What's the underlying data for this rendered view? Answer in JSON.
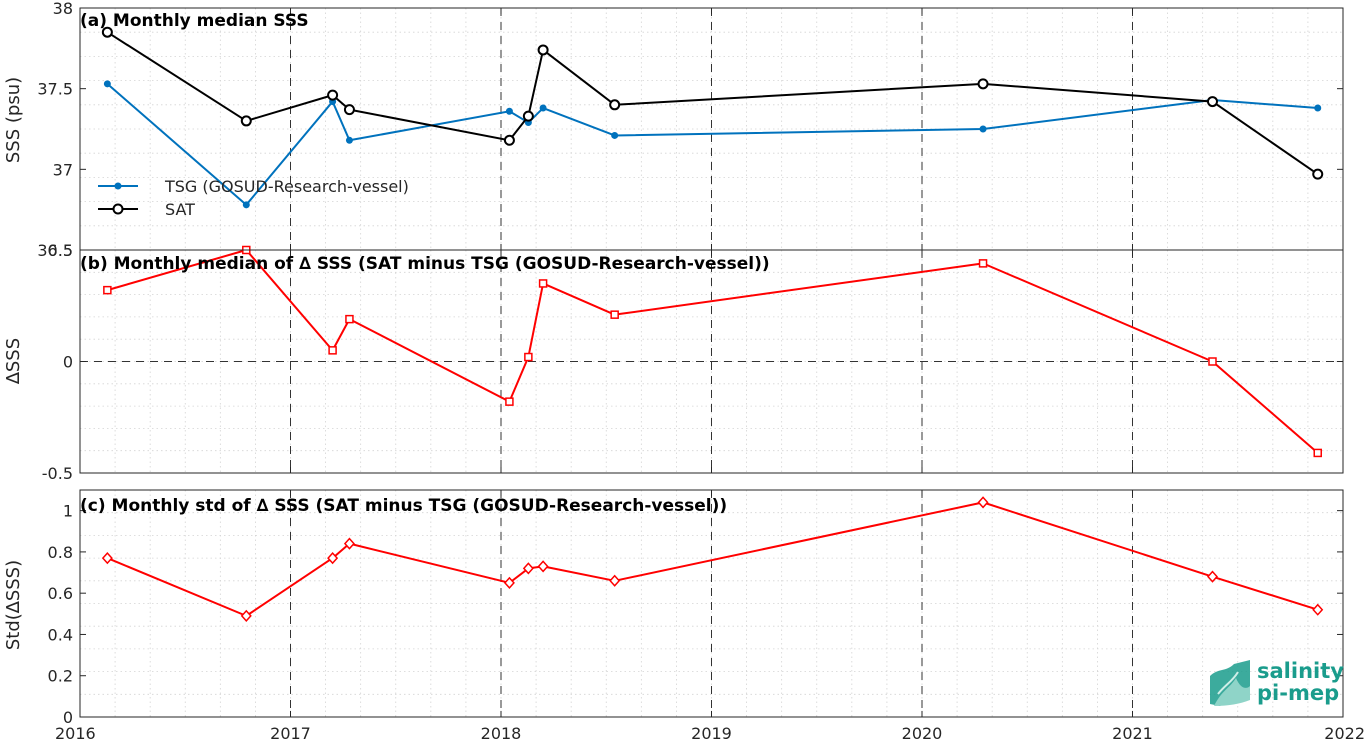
{
  "chart_data": [
    {
      "id": "a",
      "type": "line",
      "title": "(a) Monthly median SSS",
      "ylabel": "SSS (psu)",
      "xlim": [
        2016,
        2022
      ],
      "ylim": [
        36.5,
        38
      ],
      "yticks": [
        "36.5",
        "37",
        "37.5",
        "38"
      ],
      "ytick_values": [
        36.5,
        37,
        37.5,
        38
      ],
      "x": [
        2016.13,
        2016.79,
        2017.2,
        2017.28,
        2018.04,
        2018.13,
        2018.2,
        2018.54,
        2020.29,
        2021.38,
        2021.88
      ],
      "series": [
        {
          "name": "TSG (GOSUD-Research-vessel)",
          "color": "#0072BD",
          "marker": "dot",
          "values": [
            37.53,
            36.78,
            37.42,
            37.18,
            37.36,
            37.29,
            37.38,
            37.21,
            37.25,
            37.43,
            37.38
          ]
        },
        {
          "name": "SAT",
          "color": "#000000",
          "marker": "circle",
          "values": [
            37.85,
            37.3,
            37.46,
            37.37,
            37.18,
            37.33,
            37.74,
            37.4,
            37.53,
            37.42,
            36.97
          ]
        }
      ],
      "legend": "lower-left",
      "grid": true
    },
    {
      "id": "b",
      "type": "line",
      "title": "(b) Monthly median of ∆ SSS (SAT minus TSG (GOSUD-Research-vessel))",
      "ylabel": "∆SSS",
      "xlim": [
        2016,
        2022
      ],
      "ylim": [
        -0.5,
        0.5
      ],
      "yticks": [
        "-0.5",
        "0",
        "0.5"
      ],
      "ytick_values": [
        -0.5,
        0,
        0.5
      ],
      "x": [
        2016.13,
        2016.79,
        2017.2,
        2017.28,
        2018.04,
        2018.13,
        2018.2,
        2018.54,
        2020.29,
        2021.38,
        2021.88
      ],
      "series": [
        {
          "color": "#ff0000",
          "marker": "square",
          "values": [
            0.32,
            0.5,
            0.05,
            0.19,
            -0.18,
            0.02,
            0.35,
            0.21,
            0.44,
            0.0,
            -0.41
          ]
        }
      ],
      "zero_line": true,
      "grid": true
    },
    {
      "id": "c",
      "type": "line",
      "title": "(c) Monthly std of ∆ SSS (SAT minus TSG (GOSUD-Research-vessel))",
      "ylabel": "Std(∆SSS)",
      "xlim": [
        2016,
        2022
      ],
      "ylim": [
        0,
        1.1
      ],
      "yticks": [
        "0",
        "0.2",
        "0.4",
        "0.6",
        "0.8",
        "1"
      ],
      "ytick_values": [
        0,
        0.2,
        0.4,
        0.6,
        0.8,
        1
      ],
      "x": [
        2016.13,
        2016.79,
        2017.2,
        2017.28,
        2018.04,
        2018.13,
        2018.2,
        2018.54,
        2020.29,
        2021.38,
        2021.88
      ],
      "series": [
        {
          "color": "#ff0000",
          "marker": "diamond",
          "values": [
            0.77,
            0.49,
            0.77,
            0.84,
            0.65,
            0.72,
            0.73,
            0.66,
            1.04,
            0.68,
            0.52
          ]
        }
      ],
      "xticks": [
        "2016",
        "2017",
        "2018",
        "2019",
        "2020",
        "2021",
        "2022"
      ],
      "xtick_values": [
        2016,
        2017,
        2018,
        2019,
        2020,
        2021,
        2022
      ],
      "grid": true
    }
  ],
  "logo": {
    "line1": "salinity",
    "line2": "pi-mep",
    "color": "#1a9c8c"
  }
}
